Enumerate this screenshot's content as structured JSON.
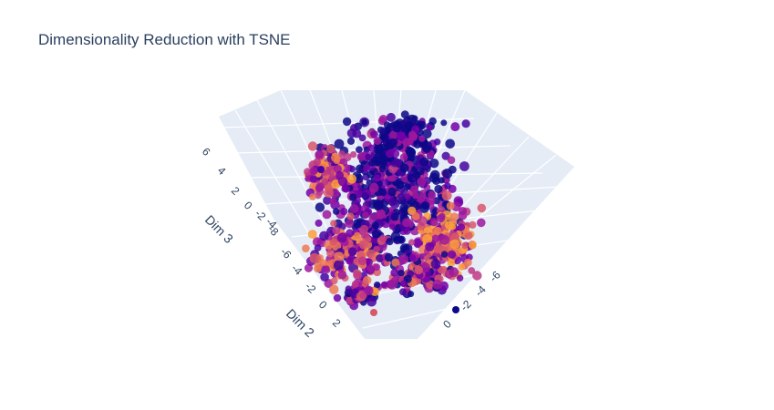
{
  "chart_data": {
    "type": "scatter",
    "subtype": "scatter3d",
    "title": "Dimensionality Reduction with TSNE",
    "axes": {
      "x": {
        "label": "",
        "ticks": [
          "0",
          "-2",
          "-4",
          "-6"
        ],
        "range": [
          -8,
          2
        ]
      },
      "y": {
        "label": "Dim 2",
        "ticks": [
          "2",
          "0",
          "-2",
          "-4",
          "-6",
          "-8"
        ],
        "range": [
          -9,
          3
        ]
      },
      "z": {
        "label": "Dim 3",
        "ticks": [
          "6",
          "4",
          "2",
          "0",
          "-2",
          "-4"
        ],
        "range": [
          -6,
          7
        ]
      }
    },
    "grid": true,
    "legend": "none",
    "colorscale": [
      "#0d0887",
      "#46039f",
      "#7201a8",
      "#9c179e",
      "#bd3786",
      "#d8576b",
      "#ed7953",
      "#fb9f3a"
    ],
    "point_count_estimate": 1500,
    "scene_background": "#e5ecf6"
  }
}
